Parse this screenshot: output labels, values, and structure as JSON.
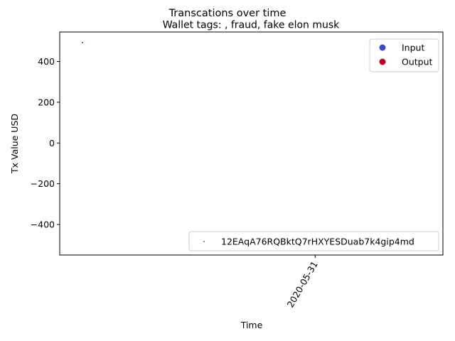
{
  "chart_data": {
    "type": "scatter",
    "suptitle": "Transcations over time",
    "title": "Wallet tags: , fraud, fake elon musk",
    "xlabel": "Time",
    "ylabel": "Tx Value USD",
    "ylim": [
      -550,
      545
    ],
    "yticks": [
      -400,
      -200,
      0,
      200,
      400
    ],
    "ytick_labels": [
      "−400",
      "−200",
      "0",
      "200",
      "400"
    ],
    "xlim": [
      -0.9,
      0.45
    ],
    "xticks": [
      0
    ],
    "xtick_labels": [
      "2020-05-31"
    ],
    "grid": false,
    "series": [
      {
        "name": "Output",
        "color": "#b40426",
        "points": [
          {
            "x": -0.82,
            "y": 493
          }
        ]
      }
    ],
    "legends": [
      {
        "placement": "upper-right",
        "entries": [
          {
            "label": "Input",
            "color": "#3b4cc0"
          },
          {
            "label": "Output",
            "color": "#b40426"
          }
        ]
      },
      {
        "placement": "lower-right",
        "entries": [
          {
            "label": "12EAqA76RQBktQ7rHXYESDuab7k4gip4md",
            "color": "#2e8b57"
          }
        ]
      }
    ]
  }
}
